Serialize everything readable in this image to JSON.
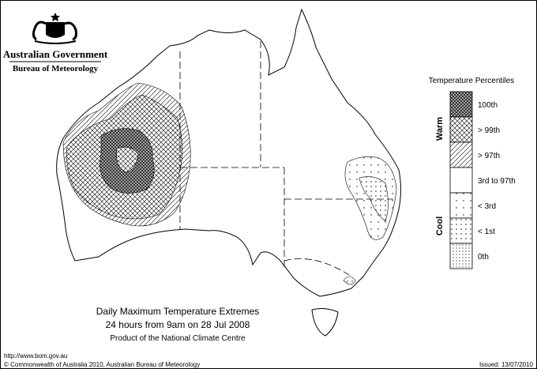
{
  "header": {
    "government": "Australian Government",
    "agency": "Bureau of Meteorology"
  },
  "map": {
    "title_lines": [
      "Daily Maximum Temperature Extremes",
      "24 hours from 9am on 28 Jul 2008",
      "Product of the National Climate Centre"
    ]
  },
  "legend": {
    "title": "Temperature Percentiles",
    "items": [
      "100th",
      "> 99th",
      "> 97th",
      "3rd to 97th",
      "< 3rd",
      "< 1st",
      "0th"
    ],
    "warm_label": "Warm",
    "cool_label": "Cool"
  },
  "footer": {
    "url": "http://www.bom.gov.au",
    "copyright": "© Commonwealth of Australia 2010, Australian Bureau of Meteorology",
    "issued": "Issued: 13/07/2010"
  }
}
